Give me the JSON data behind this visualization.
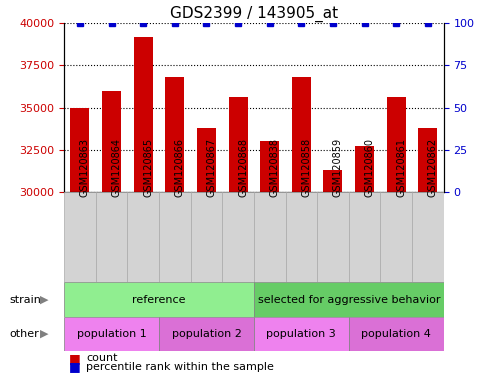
{
  "title": "GDS2399 / 143905_at",
  "samples": [
    "GSM120863",
    "GSM120864",
    "GSM120865",
    "GSM120866",
    "GSM120867",
    "GSM120868",
    "GSM120838",
    "GSM120858",
    "GSM120859",
    "GSM120860",
    "GSM120861",
    "GSM120862"
  ],
  "counts": [
    35000,
    36000,
    39200,
    36800,
    33800,
    35600,
    33000,
    36800,
    31300,
    32700,
    35600,
    33800
  ],
  "percentile_ranks": [
    100,
    100,
    100,
    100,
    100,
    100,
    100,
    100,
    100,
    100,
    100,
    100
  ],
  "ylim": [
    30000,
    40000
  ],
  "right_ylim": [
    0,
    100
  ],
  "right_yticks": [
    0,
    25,
    50,
    75,
    100
  ],
  "bar_color": "#cc0000",
  "dot_color": "#0000cc",
  "left_yticks": [
    30000,
    32500,
    35000,
    37500,
    40000
  ],
  "strain_groups": [
    {
      "label": "reference",
      "start": 0,
      "end": 6,
      "color": "#90ee90"
    },
    {
      "label": "selected for aggressive behavior",
      "start": 6,
      "end": 12,
      "color": "#66cc66"
    }
  ],
  "other_groups": [
    {
      "label": "population 1",
      "start": 0,
      "end": 3,
      "color": "#ee82ee"
    },
    {
      "label": "population 2",
      "start": 3,
      "end": 6,
      "color": "#da70d6"
    },
    {
      "label": "population 3",
      "start": 6,
      "end": 9,
      "color": "#ee82ee"
    },
    {
      "label": "population 4",
      "start": 9,
      "end": 12,
      "color": "#da70d6"
    }
  ],
  "strain_label": "strain",
  "other_label": "other",
  "legend_count_label": "count",
  "legend_percentile_label": "percentile rank within the sample",
  "background_color": "#ffffff",
  "plot_bg_color": "#ffffff",
  "tick_label_color_left": "#cc0000",
  "tick_label_color_right": "#0000cc",
  "bar_width": 0.6,
  "xlabel_bg_color": "#d3d3d3",
  "xlabel_edge_color": "#aaaaaa"
}
